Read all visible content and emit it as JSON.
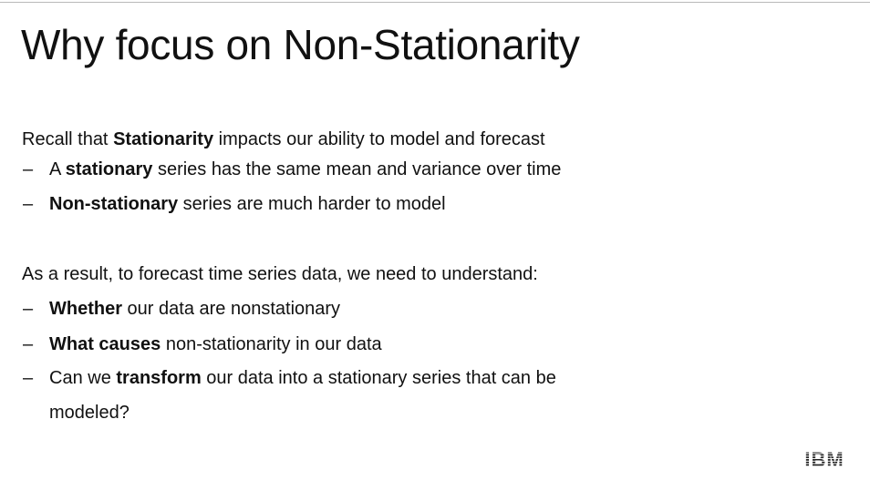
{
  "slide": {
    "title": "Why focus on Non-Stationarity",
    "section1": {
      "intro": {
        "before": "Recall that ",
        "bold": "Stationarity",
        "after": " impacts our ability to model and forecast"
      },
      "bullets": [
        {
          "dash": "–",
          "before": "A ",
          "bold": "stationary",
          "after": " series has the same mean and variance over time"
        },
        {
          "dash": "–",
          "before": "",
          "bold": "Non-stationary",
          "after": " series are much harder to model"
        }
      ]
    },
    "section2": {
      "intro": "As a result, to forecast time series data, we need to understand:",
      "bullets": [
        {
          "dash": "–",
          "before": "",
          "bold": "Whether",
          "after": " our data are nonstationary"
        },
        {
          "dash": "–",
          "before": "",
          "bold": "What causes",
          "after": " non-stationarity in our data"
        },
        {
          "dash": "–",
          "before": "Can we ",
          "bold": "transform",
          "after": " our data into a stationary series that can be",
          "continuation": "modeled?"
        }
      ]
    },
    "logo_text": "IBM"
  }
}
